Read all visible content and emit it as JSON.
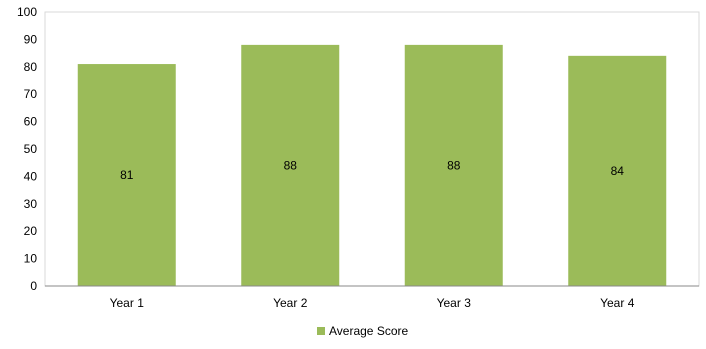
{
  "chart_data": {
    "type": "bar",
    "categories": [
      "Year 1",
      "Year 2",
      "Year 3",
      "Year 4"
    ],
    "series": [
      {
        "name": "Average Score",
        "values": [
          81,
          88,
          88,
          84
        ],
        "color": "#9bbb59"
      }
    ],
    "ylim": [
      0,
      100
    ],
    "yticks": [
      0,
      10,
      20,
      30,
      40,
      50,
      60,
      70,
      80,
      90,
      100
    ],
    "grid": false,
    "legend": "bottom",
    "data_labels": [
      "81",
      "88",
      "88",
      "84"
    ]
  }
}
